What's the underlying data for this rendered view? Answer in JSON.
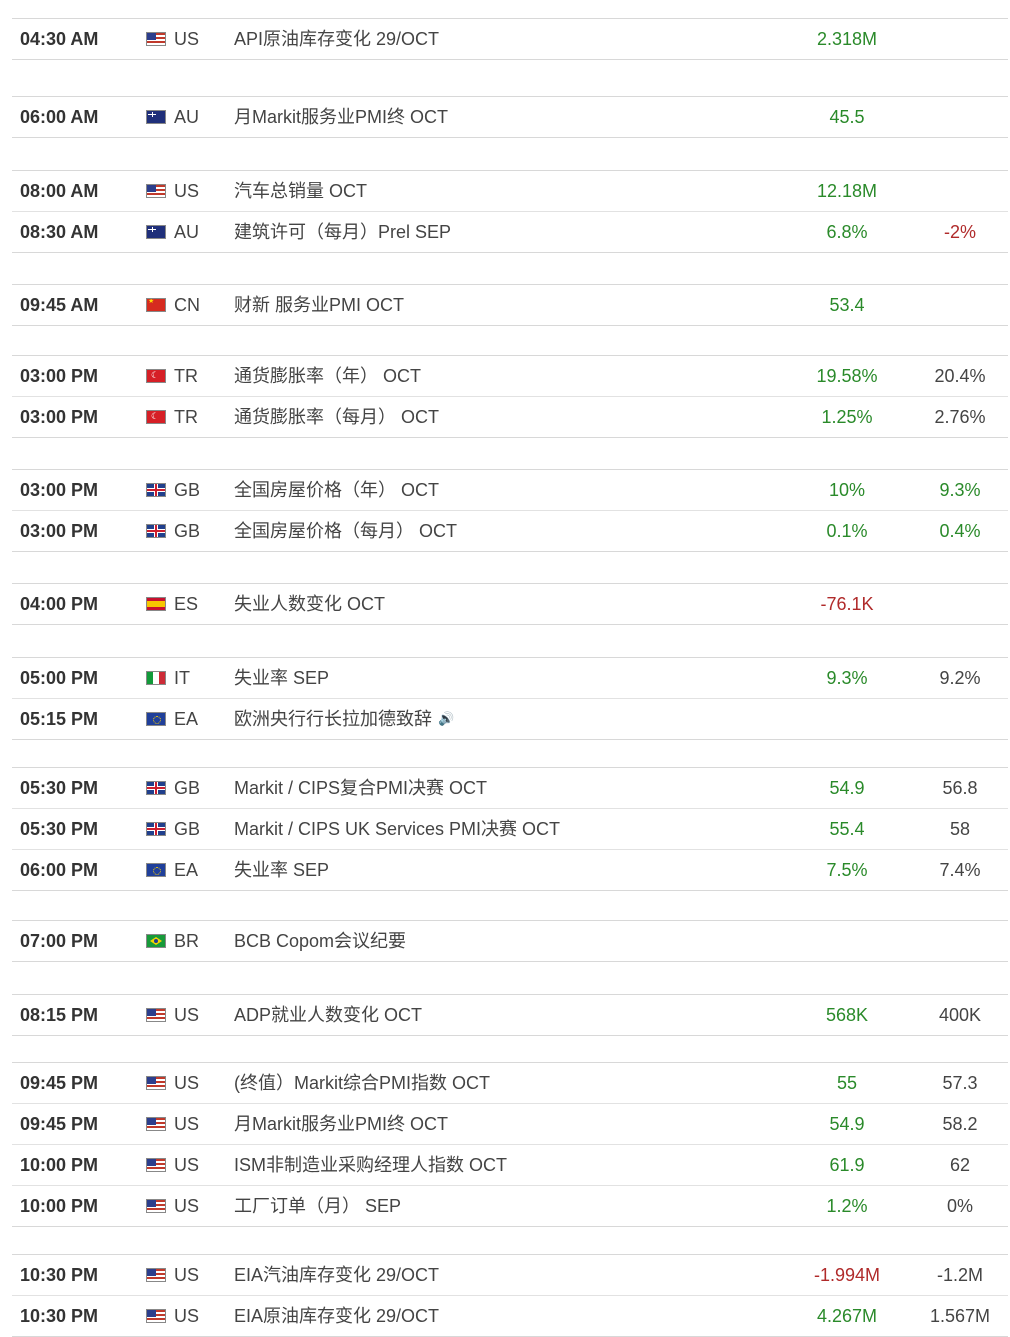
{
  "events": [
    {
      "time": "04:30 AM",
      "country": "US",
      "flag": "us-flag-icon",
      "event": "API原油库存变化 29/OCT",
      "actual": "2.318M",
      "actual_dir": "pos",
      "previous": ""
    },
    {
      "time": "06:00 AM",
      "country": "AU",
      "flag": "au-flag-icon",
      "event": "月Markit服务业PMI终 OCT",
      "actual": "45.5",
      "actual_dir": "pos",
      "previous": ""
    },
    {
      "time": "08:00 AM",
      "country": "US",
      "flag": "us-flag-icon",
      "event": "汽车总销量 OCT",
      "actual": "12.18M",
      "actual_dir": "pos",
      "previous": ""
    },
    {
      "time": "08:30 AM",
      "country": "AU",
      "flag": "au-flag-icon",
      "event": "建筑许可（每月）Prel SEP",
      "actual": "6.8%",
      "actual_dir": "pos",
      "previous": "-2%",
      "previous_dir": "neg"
    },
    {
      "time": "09:45 AM",
      "country": "CN",
      "flag": "cn-flag-icon",
      "event": "财新 服务业PMI OCT",
      "actual": "53.4",
      "actual_dir": "pos",
      "previous": ""
    },
    {
      "time": "03:00 PM",
      "country": "TR",
      "flag": "tr-flag-icon",
      "event": "通货膨胀率（年） OCT",
      "actual": "19.58%",
      "actual_dir": "pos",
      "previous": "20.4%"
    },
    {
      "time": "03:00 PM",
      "country": "TR",
      "flag": "tr-flag-icon",
      "event": "通货膨胀率（每月） OCT",
      "actual": "1.25%",
      "actual_dir": "pos",
      "previous": "2.76%"
    },
    {
      "time": "03:00 PM",
      "country": "GB",
      "flag": "gb-flag-icon",
      "event": "全国房屋价格（年） OCT",
      "actual": "10%",
      "actual_dir": "pos",
      "previous": "9.3%",
      "previous_dir": "pos"
    },
    {
      "time": "03:00 PM",
      "country": "GB",
      "flag": "gb-flag-icon",
      "event": "全国房屋价格（每月） OCT",
      "actual": "0.1%",
      "actual_dir": "pos",
      "previous": "0.4%",
      "previous_dir": "pos"
    },
    {
      "time": "04:00 PM",
      "country": "ES",
      "flag": "es-flag-icon",
      "event": "失业人数变化 OCT",
      "actual": "-76.1K",
      "actual_dir": "neg",
      "previous": ""
    },
    {
      "time": "05:00 PM",
      "country": "IT",
      "flag": "it-flag-icon",
      "event": "失业率 SEP",
      "actual": "9.3%",
      "actual_dir": "pos",
      "previous": "9.2%"
    },
    {
      "time": "05:15 PM",
      "country": "EA",
      "flag": "ea-flag-icon",
      "event": "欧洲央行行长拉加德致辞",
      "speaker_icon": "speaker-icon",
      "actual": "",
      "previous": ""
    },
    {
      "time": "05:30 PM",
      "country": "GB",
      "flag": "gb-flag-icon",
      "event": "Markit / CIPS复合PMI决赛 OCT",
      "actual": "54.9",
      "actual_dir": "pos",
      "previous": "56.8"
    },
    {
      "time": "05:30 PM",
      "country": "GB",
      "flag": "gb-flag-icon",
      "event": "Markit / CIPS UK Services PMI决赛 OCT",
      "actual": "55.4",
      "actual_dir": "pos",
      "previous": "58"
    },
    {
      "time": "06:00 PM",
      "country": "EA",
      "flag": "ea-flag-icon",
      "event": "失业率 SEP",
      "actual": "7.5%",
      "actual_dir": "pos",
      "previous": "7.4%"
    },
    {
      "time": "07:00 PM",
      "country": "BR",
      "flag": "br-flag-icon",
      "event": "BCB Copom会议纪要",
      "actual": "",
      "previous": ""
    },
    {
      "time": "08:15 PM",
      "country": "US",
      "flag": "us-flag-icon",
      "event": "ADP就业人数变化 OCT",
      "actual": "568K",
      "actual_dir": "pos",
      "previous": "400K"
    },
    {
      "time": "09:45 PM",
      "country": "US",
      "flag": "us-flag-icon",
      "event": "(终值）Markit综合PMI指数 OCT",
      "actual": "55",
      "actual_dir": "pos",
      "previous": "57.3"
    },
    {
      "time": "09:45 PM",
      "country": "US",
      "flag": "us-flag-icon",
      "event": "月Markit服务业PMI终 OCT",
      "actual": "54.9",
      "actual_dir": "pos",
      "previous": "58.2"
    },
    {
      "time": "10:00 PM",
      "country": "US",
      "flag": "us-flag-icon",
      "event": "ISM非制造业采购经理人指数 OCT",
      "actual": "61.9",
      "actual_dir": "pos",
      "previous": "62"
    },
    {
      "time": "10:00 PM",
      "country": "US",
      "flag": "us-flag-icon",
      "event": "工厂订单（月） SEP",
      "actual": "1.2%",
      "actual_dir": "pos",
      "previous": "0%"
    },
    {
      "time": "10:30 PM",
      "country": "US",
      "flag": "us-flag-icon",
      "event": "EIA汽油库存变化 29/OCT",
      "actual": "-1.994M",
      "actual_dir": "neg",
      "previous": "-1.2M"
    },
    {
      "time": "10:30 PM",
      "country": "US",
      "flag": "us-flag-icon",
      "event": "EIA原油库存变化 29/OCT",
      "actual": "4.267M",
      "actual_dir": "pos",
      "previous": "1.567M"
    }
  ],
  "colors": {
    "positive": "#2a8a2a",
    "negative": "#b02a2a",
    "border": "#d8d8d8"
  }
}
